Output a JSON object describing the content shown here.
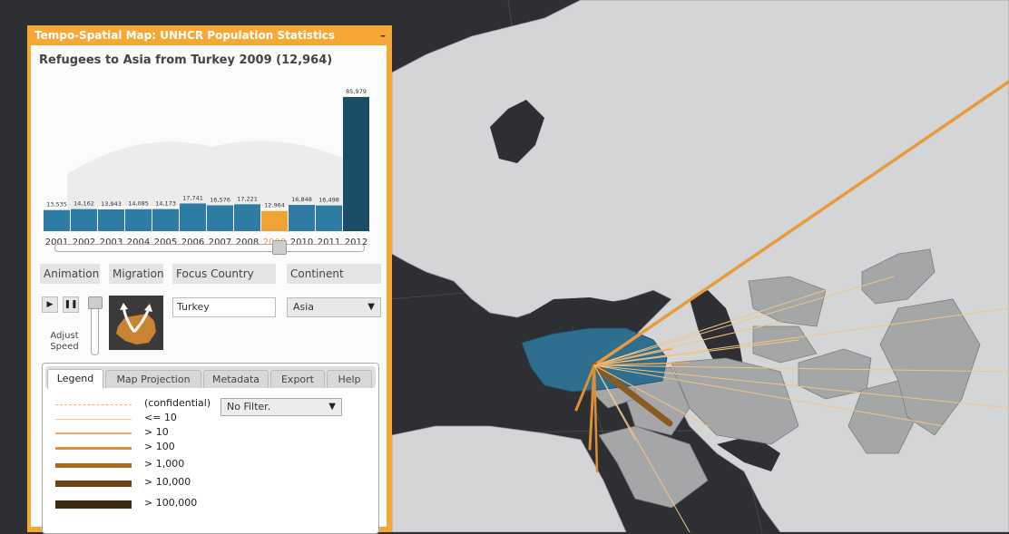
{
  "panel": {
    "window_title": "Tempo-Spatial Map: UNHCR Population Statistics",
    "minimize_label": "–",
    "chart_title": "Refugees to Asia from Turkey 2009 (12,964)"
  },
  "chart_data": {
    "type": "bar",
    "categories": [
      "2001",
      "2002",
      "2003",
      "2004",
      "2005",
      "2006",
      "2007",
      "2008",
      "2009",
      "2010",
      "2011",
      "2012"
    ],
    "values": [
      13535,
      14162,
      13943,
      14085,
      14173,
      17741,
      16576,
      17221,
      12964,
      16848,
      16498,
      85979
    ],
    "value_labels": [
      "13,535",
      "14,162",
      "13,943",
      "14,085",
      "14,173",
      "17,741",
      "16,576",
      "17,221",
      "12,964",
      "16,848",
      "16,498",
      "85,979"
    ],
    "highlight_index": 8,
    "colors": {
      "bar": "#2e7ba3",
      "highlight": "#f0a234",
      "last": "#1c4d67"
    },
    "ylim": [
      0,
      90000
    ]
  },
  "timeline": {
    "selected_year_index": 8
  },
  "controls": {
    "animation_label": "Animation",
    "migration_label": "Migration",
    "focus_country_label": "Focus Country",
    "continent_label": "Continent",
    "play_icon": "▶",
    "pause_icon": "❚❚",
    "adjust_speed_label_1": "Adjust",
    "adjust_speed_label_2": "Speed",
    "focus_country_value": "Turkey",
    "continent_value": "Asia",
    "dropdown_arrow": "▼"
  },
  "tabs": [
    {
      "label": "Legend",
      "active": true
    },
    {
      "label": "Map Projection",
      "active": false
    },
    {
      "label": "Metadata",
      "active": false
    },
    {
      "label": "Export",
      "active": false
    },
    {
      "label": "Help",
      "active": false
    }
  ],
  "legend": {
    "filter_value": "No Filter.",
    "items": [
      {
        "label": "(confidential)",
        "color": "#f0b070",
        "dashed": true,
        "weight": 1
      },
      {
        "label": "<= 10",
        "color": "#f3c486",
        "dashed": false,
        "weight": 1
      },
      {
        "label": "> 10",
        "color": "#eeaa5e",
        "dashed": false,
        "weight": 1.5
      },
      {
        "label": "> 100",
        "color": "#de8f32",
        "dashed": false,
        "weight": 3
      },
      {
        "label": "> 1,000",
        "color": "#a8691f",
        "dashed": false,
        "weight": 5
      },
      {
        "label": "> 10,000",
        "color": "#6f4516",
        "dashed": false,
        "weight": 7
      },
      {
        "label": "> 100,000",
        "color": "#3e2a12",
        "dashed": false,
        "weight": 9
      }
    ]
  },
  "map": {
    "ocean_color": "#2d2f33",
    "land_color": "#d4d5d6",
    "destination_color": "#a5a6a8",
    "focus_color": "#2e6e8e",
    "flow_color": "#e89a3c"
  }
}
